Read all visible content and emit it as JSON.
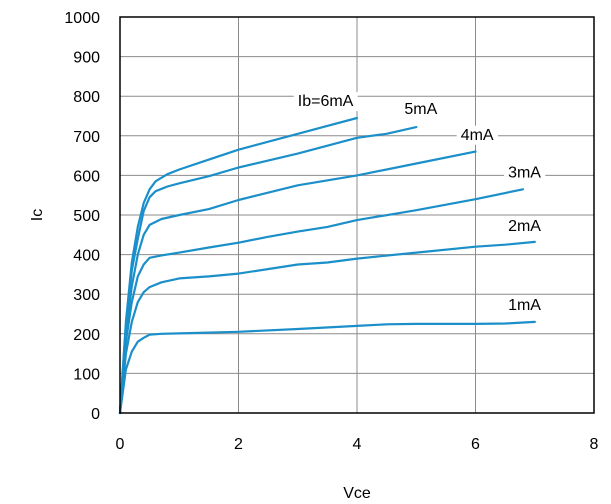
{
  "chart_data": {
    "type": "line",
    "xlabel": "Vce",
    "ylabel": "Ic",
    "xlim": [
      0,
      8
    ],
    "ylim": [
      0,
      1000
    ],
    "xticks": [
      "0",
      "2",
      "4",
      "6",
      "8"
    ],
    "yticks": [
      "0",
      "100",
      "200",
      "300",
      "400",
      "500",
      "600",
      "700",
      "800",
      "900",
      "1000"
    ],
    "grid": true,
    "line_color": "#1b8fc9",
    "series": [
      {
        "name": "1mA",
        "x": [
          0,
          0.1,
          0.2,
          0.3,
          0.4,
          0.5,
          0.7,
          1.0,
          2.0,
          3.0,
          4.0,
          4.5,
          5.0,
          6.0,
          6.5,
          7.0
        ],
        "y": [
          0,
          110,
          155,
          180,
          190,
          198,
          200,
          201,
          205,
          212,
          220,
          224,
          225,
          225,
          226,
          230
        ]
      },
      {
        "name": "2mA",
        "x": [
          0,
          0.1,
          0.2,
          0.3,
          0.4,
          0.5,
          0.7,
          1.0,
          1.5,
          2.0,
          3.0,
          3.5,
          4.0,
          5.0,
          6.0,
          6.5,
          7.0
        ],
        "y": [
          0,
          150,
          230,
          280,
          305,
          318,
          330,
          340,
          345,
          352,
          375,
          380,
          390,
          405,
          420,
          425,
          432
        ]
      },
      {
        "name": "3mA",
        "x": [
          0,
          0.1,
          0.2,
          0.3,
          0.4,
          0.5,
          0.7,
          1.0,
          1.5,
          2.0,
          2.5,
          3.0,
          3.5,
          4.0,
          5.0,
          6.0,
          6.8
        ],
        "y": [
          0,
          180,
          280,
          345,
          375,
          392,
          398,
          405,
          418,
          430,
          445,
          458,
          470,
          487,
          512,
          540,
          565
        ]
      },
      {
        "name": "4mA",
        "x": [
          0,
          0.1,
          0.2,
          0.3,
          0.4,
          0.5,
          0.7,
          1.0,
          1.5,
          2.0,
          3.0,
          4.0,
          5.0,
          6.0
        ],
        "y": [
          0,
          200,
          320,
          400,
          450,
          475,
          490,
          500,
          515,
          538,
          575,
          600,
          630,
          660
        ]
      },
      {
        "name": "5mA",
        "x": [
          0,
          0.1,
          0.2,
          0.3,
          0.4,
          0.5,
          0.6,
          0.8,
          1.0,
          1.5,
          2.0,
          3.0,
          4.0,
          4.5,
          5.0
        ],
        "y": [
          0,
          220,
          360,
          440,
          510,
          545,
          560,
          572,
          580,
          598,
          620,
          655,
          695,
          705,
          722
        ]
      },
      {
        "name": "Ib=6mA",
        "x": [
          0,
          0.1,
          0.2,
          0.3,
          0.4,
          0.5,
          0.6,
          0.8,
          1.0,
          1.5,
          2.0,
          3.0,
          4.0
        ],
        "y": [
          0,
          230,
          380,
          470,
          530,
          565,
          585,
          603,
          615,
          640,
          665,
          705,
          745
        ]
      }
    ],
    "series_labels": [
      {
        "text": "1mA",
        "x": 6.55,
        "y": 260
      },
      {
        "text": "2mA",
        "x": 6.55,
        "y": 460
      },
      {
        "text": "3mA",
        "x": 6.55,
        "y": 595
      },
      {
        "text": "4mA",
        "x": 5.75,
        "y": 690
      },
      {
        "text": "5mA",
        "x": 4.8,
        "y": 755
      },
      {
        "text": "Ib=6mA",
        "x": 3.0,
        "y": 775
      }
    ]
  }
}
